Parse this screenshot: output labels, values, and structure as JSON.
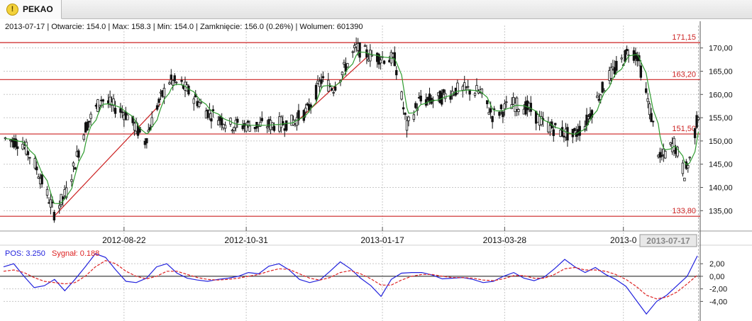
{
  "tab": {
    "label": "PEKAO",
    "icon": "warning-icon"
  },
  "info_line": "2013-07-17 | Otwarcie: 154.0 | Max: 158.3 | Min: 154.0 | Zamknięcie: 156.0 (0.26%)  | Wolumen: 601390",
  "colors": {
    "up": "#1a1a1a",
    "ma": "#2f9c2f",
    "level": "#cc2222",
    "pos": "#2222dd",
    "signal": "#dd2222",
    "grid": "#c8c8c8"
  },
  "chart_data": [
    {
      "type": "candlestick",
      "ylim": [
        132,
        173
      ],
      "yticks": [
        "135,00",
        "140,00",
        "145,00",
        "150,00",
        "155,00",
        "160,00",
        "165,00",
        "170,00"
      ],
      "ytick_values": [
        135,
        140,
        145,
        150,
        155,
        160,
        165,
        170
      ],
      "xticks": [
        "2012-08-22",
        "2012-10-31",
        "2013-01-17",
        "2013-03-28",
        "2013-0"
      ],
      "cursor_date": "2013-07-17",
      "levels": [
        {
          "label": "171,15",
          "value": 171.15
        },
        {
          "label": "163,20",
          "value": 163.2
        },
        {
          "label": "151,50",
          "value": 151.5
        },
        {
          "label": "133,80",
          "value": 133.8
        }
      ],
      "trendlines": [
        {
          "from": [
            "2012-07-13",
            133.8
          ],
          "to": [
            "2012-09-12",
            158.0
          ]
        },
        {
          "from": [
            "2012-11-27",
            153.5
          ],
          "to": [
            "2013-01-08",
            168.0
          ]
        }
      ],
      "price_path": [
        [
          "2012-06-15",
          150.5
        ],
        [
          "2012-06-25",
          149.5
        ],
        [
          "2012-07-02",
          145.0
        ],
        [
          "2012-07-09",
          138.5
        ],
        [
          "2012-07-13",
          134.5
        ],
        [
          "2012-07-20",
          139.0
        ],
        [
          "2012-07-31",
          153.0
        ],
        [
          "2012-08-09",
          159.0
        ],
        [
          "2012-08-16",
          157.5
        ],
        [
          "2012-08-24",
          155.5
        ],
        [
          "2012-09-03",
          150.0
        ],
        [
          "2012-09-10",
          157.5
        ],
        [
          "2012-09-17",
          163.0
        ],
        [
          "2012-09-24",
          162.0
        ],
        [
          "2012-10-01",
          159.5
        ],
        [
          "2012-10-08",
          156.5
        ],
        [
          "2012-10-15",
          155.0
        ],
        [
          "2012-10-22",
          153.5
        ],
        [
          "2012-11-05",
          153.3
        ],
        [
          "2012-11-15",
          153.5
        ],
        [
          "2012-11-26",
          154.0
        ],
        [
          "2012-12-05",
          156.5
        ],
        [
          "2012-12-13",
          163.0
        ],
        [
          "2012-12-20",
          161.5
        ],
        [
          "2013-01-02",
          170.0
        ],
        [
          "2013-01-09",
          168.5
        ],
        [
          "2013-01-16",
          168.0
        ],
        [
          "2013-01-24",
          167.5
        ],
        [
          "2013-01-31",
          153.0
        ],
        [
          "2013-02-07",
          158.5
        ],
        [
          "2013-02-18",
          159.0
        ],
        [
          "2013-02-28",
          161.0
        ],
        [
          "2013-03-07",
          161.0
        ],
        [
          "2013-03-14",
          160.5
        ],
        [
          "2013-03-21",
          155.5
        ],
        [
          "2013-04-02",
          158.0
        ],
        [
          "2013-04-11",
          157.0
        ],
        [
          "2013-04-18",
          154.0
        ],
        [
          "2013-04-26",
          152.5
        ],
        [
          "2013-05-06",
          151.0
        ],
        [
          "2013-05-13",
          153.5
        ],
        [
          "2013-05-20",
          159.0
        ],
        [
          "2013-05-27",
          164.0
        ],
        [
          "2013-06-03",
          167.0
        ],
        [
          "2013-06-07",
          169.5
        ],
        [
          "2013-06-12",
          168.5
        ],
        [
          "2013-06-19",
          157.0
        ],
        [
          "2013-06-25",
          146.0
        ],
        [
          "2013-07-03",
          149.5
        ],
        [
          "2013-07-09",
          143.0
        ],
        [
          "2013-07-12",
          146.0
        ],
        [
          "2013-07-17",
          156.0
        ]
      ]
    },
    {
      "type": "line",
      "legend": [
        {
          "label": "POS: 3.250",
          "color": "#2222dd"
        },
        {
          "label": "Sygnał: 0.188",
          "color": "#dd2222"
        }
      ],
      "ylim": [
        -7,
        4.5
      ],
      "yticks": [
        "2,00",
        "0,00",
        "-2,00",
        "-4,00"
      ],
      "ytick_values": [
        2,
        0,
        -2,
        -4
      ],
      "series": [
        {
          "name": "POS",
          "color": "#2222dd",
          "values": [
            1.5,
            2.0,
            0.0,
            -1.8,
            -1.5,
            -0.5,
            -2.3,
            -0.5,
            1.5,
            3.6,
            3.0,
            1.0,
            -0.8,
            -1.0,
            -0.3,
            1.5,
            2.0,
            0.5,
            -0.3,
            -0.6,
            -0.8,
            -0.5,
            -0.3,
            0.0,
            0.6,
            0.4,
            1.6,
            2.0,
            1.0,
            -0.5,
            -1.0,
            -0.6,
            0.8,
            2.3,
            1.2,
            -0.3,
            -1.5,
            -3.2,
            -0.5,
            0.5,
            0.6,
            0.6,
            0.2,
            -0.4,
            -0.3,
            -0.2,
            -0.5,
            -1.0,
            -0.8,
            0.0,
            0.6,
            -0.3,
            -0.7,
            -0.1,
            1.2,
            2.7,
            1.5,
            0.6,
            1.4,
            0.3,
            -0.5,
            -1.6,
            -3.8,
            -6.0,
            -4.0,
            -3.0,
            -1.5,
            0.0,
            3.25
          ]
        },
        {
          "name": "Sygnał",
          "color": "#dd2222",
          "values": [
            0.8,
            1.0,
            0.6,
            -0.2,
            -0.8,
            -1.0,
            -1.2,
            -1.0,
            0.0,
            1.5,
            2.5,
            2.0,
            0.8,
            0.0,
            -0.4,
            0.0,
            0.8,
            0.8,
            0.3,
            -0.2,
            -0.5,
            -0.6,
            -0.5,
            -0.3,
            0.0,
            0.3,
            0.8,
            1.2,
            1.1,
            0.4,
            -0.3,
            -0.6,
            -0.2,
            0.6,
            0.9,
            0.4,
            -0.4,
            -1.4,
            -1.4,
            -0.6,
            0.0,
            0.3,
            0.3,
            0.0,
            -0.2,
            -0.2,
            -0.3,
            -0.6,
            -0.7,
            -0.4,
            0.1,
            0.1,
            -0.3,
            -0.3,
            0.3,
            1.2,
            1.4,
            1.0,
            1.0,
            0.8,
            0.3,
            -0.5,
            -1.6,
            -3.0,
            -3.6,
            -3.3,
            -2.5,
            -1.2,
            0.188
          ]
        }
      ]
    }
  ]
}
